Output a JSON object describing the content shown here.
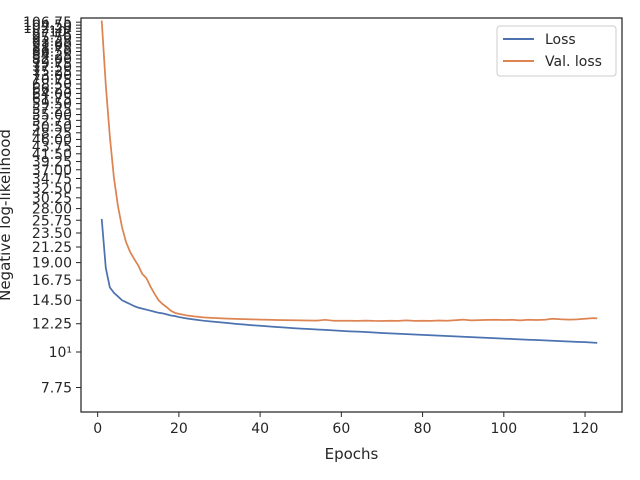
{
  "chart_data": {
    "type": "line",
    "title": "",
    "xlabel": "Epochs",
    "ylabel": "Negative log-likelihood",
    "xlim": [
      -4.1,
      129.1
    ],
    "ylim": [
      6.5,
      110
    ],
    "yscale": "log",
    "grid": false,
    "legend_position": "top-right",
    "x_ticks": [
      0,
      20,
      40,
      60,
      80,
      100,
      120
    ],
    "y_ticks": [
      {
        "value": 7.75,
        "label": "7.75"
      },
      {
        "value": 10,
        "label": "10¹"
      },
      {
        "value": 12.25,
        "label": "12.25"
      },
      {
        "value": 14.5,
        "label": "14.50"
      },
      {
        "value": 16.75,
        "label": "16.75"
      },
      {
        "value": 19,
        "label": "19.00"
      },
      {
        "value": 21.25,
        "label": "21.25"
      },
      {
        "value": 23.5,
        "label": "23.50"
      },
      {
        "value": 25.75,
        "label": "25.75"
      },
      {
        "value": 28,
        "label": "28.00"
      },
      {
        "value": 30.25,
        "label": "30.25"
      },
      {
        "value": 32.5,
        "label": "32.50"
      },
      {
        "value": 34.75,
        "label": "34.75"
      },
      {
        "value": 37,
        "label": "37.00"
      },
      {
        "value": 39.25,
        "label": "39.25"
      },
      {
        "value": 41.5,
        "label": "41.50"
      },
      {
        "value": 43.75,
        "label": "43.75"
      },
      {
        "value": 46,
        "label": "46.00"
      },
      {
        "value": 48.25,
        "label": "48.25"
      },
      {
        "value": 50.5,
        "label": "50.50"
      },
      {
        "value": 52.75,
        "label": "52.75"
      },
      {
        "value": 55,
        "label": "55.00"
      },
      {
        "value": 57.25,
        "label": "57.25"
      },
      {
        "value": 59.5,
        "label": "59.50"
      },
      {
        "value": 61.75,
        "label": "61.75"
      },
      {
        "value": 64,
        "label": "64.00"
      },
      {
        "value": 66.25,
        "label": "66.25"
      },
      {
        "value": 68.5,
        "label": "68.50"
      },
      {
        "value": 70.75,
        "label": "70.75"
      },
      {
        "value": 73,
        "label": "73.00"
      },
      {
        "value": 75.25,
        "label": "75.25"
      },
      {
        "value": 77.5,
        "label": "77.50"
      },
      {
        "value": 79.75,
        "label": "79.75"
      },
      {
        "value": 82,
        "label": "82.00"
      },
      {
        "value": 84.25,
        "label": "84.25"
      },
      {
        "value": 86.5,
        "label": "86.50"
      },
      {
        "value": 88.75,
        "label": "88.75"
      },
      {
        "value": 91,
        "label": "91.00"
      },
      {
        "value": 93.25,
        "label": "93.25"
      },
      {
        "value": 95.5,
        "label": "95.50"
      },
      {
        "value": 97.75,
        "label": "97.75"
      },
      {
        "value": 100,
        "label": "10²"
      },
      {
        "value": 102.25,
        "label": "102.25"
      },
      {
        "value": 104.5,
        "label": "104.50"
      },
      {
        "value": 106.75,
        "label": "106.75"
      }
    ],
    "series": [
      {
        "name": "Loss",
        "color": "#4c72b0",
        "x": [
          1,
          2,
          3,
          4,
          5,
          6,
          7,
          8,
          9,
          10,
          11,
          12,
          13,
          14,
          15,
          16,
          17,
          18,
          19,
          20,
          22,
          24,
          26,
          28,
          30,
          32,
          34,
          36,
          38,
          40,
          42,
          44,
          46,
          48,
          50,
          52,
          54,
          56,
          58,
          60,
          62,
          64,
          66,
          68,
          70,
          72,
          74,
          76,
          78,
          80,
          82,
          84,
          86,
          88,
          90,
          92,
          94,
          96,
          98,
          100,
          102,
          104,
          106,
          108,
          110,
          112,
          114,
          116,
          118,
          120,
          122,
          123
        ],
        "y": [
          26.0,
          18.3,
          15.9,
          15.3,
          14.9,
          14.5,
          14.3,
          14.1,
          13.9,
          13.75,
          13.65,
          13.55,
          13.45,
          13.35,
          13.25,
          13.2,
          13.1,
          13.0,
          12.95,
          12.85,
          12.72,
          12.62,
          12.52,
          12.45,
          12.38,
          12.31,
          12.24,
          12.18,
          12.12,
          12.07,
          12.02,
          11.97,
          11.92,
          11.87,
          11.83,
          11.79,
          11.75,
          11.72,
          11.68,
          11.64,
          11.6,
          11.57,
          11.54,
          11.5,
          11.46,
          11.43,
          11.4,
          11.37,
          11.34,
          11.31,
          11.28,
          11.25,
          11.22,
          11.19,
          11.16,
          11.13,
          11.1,
          11.07,
          11.04,
          11.01,
          10.98,
          10.95,
          10.92,
          10.9,
          10.87,
          10.84,
          10.81,
          10.78,
          10.75,
          10.73,
          10.7,
          10.68
        ]
      },
      {
        "name": "Val. loss",
        "color": "#dd8452",
        "x": [
          1,
          2,
          3,
          4,
          5,
          6,
          7,
          8,
          9,
          10,
          11,
          12,
          13,
          14,
          15,
          16,
          17,
          18,
          19,
          20,
          22,
          24,
          26,
          28,
          30,
          32,
          34,
          36,
          38,
          40,
          42,
          44,
          46,
          48,
          50,
          52,
          54,
          56,
          58,
          60,
          62,
          64,
          66,
          68,
          70,
          72,
          74,
          76,
          78,
          80,
          82,
          84,
          86,
          88,
          90,
          92,
          94,
          96,
          98,
          100,
          102,
          104,
          106,
          108,
          110,
          112,
          114,
          116,
          118,
          120,
          122,
          123
        ],
        "y": [
          108.0,
          68.0,
          47.0,
          35.0,
          28.5,
          24.5,
          22.0,
          20.5,
          19.5,
          18.6,
          17.5,
          17.0,
          16.0,
          15.2,
          14.5,
          14.1,
          13.8,
          13.45,
          13.25,
          13.15,
          13.0,
          12.9,
          12.82,
          12.78,
          12.74,
          12.71,
          12.68,
          12.66,
          12.64,
          12.62,
          12.6,
          12.58,
          12.57,
          12.56,
          12.55,
          12.54,
          12.53,
          12.6,
          12.52,
          12.51,
          12.51,
          12.5,
          12.53,
          12.5,
          12.49,
          12.52,
          12.5,
          12.55,
          12.5,
          12.52,
          12.5,
          12.54,
          12.51,
          12.56,
          12.62,
          12.55,
          12.57,
          12.59,
          12.6,
          12.58,
          12.6,
          12.55,
          12.6,
          12.58,
          12.6,
          12.7,
          12.65,
          12.62,
          12.64,
          12.7,
          12.75,
          12.73
        ]
      }
    ]
  }
}
